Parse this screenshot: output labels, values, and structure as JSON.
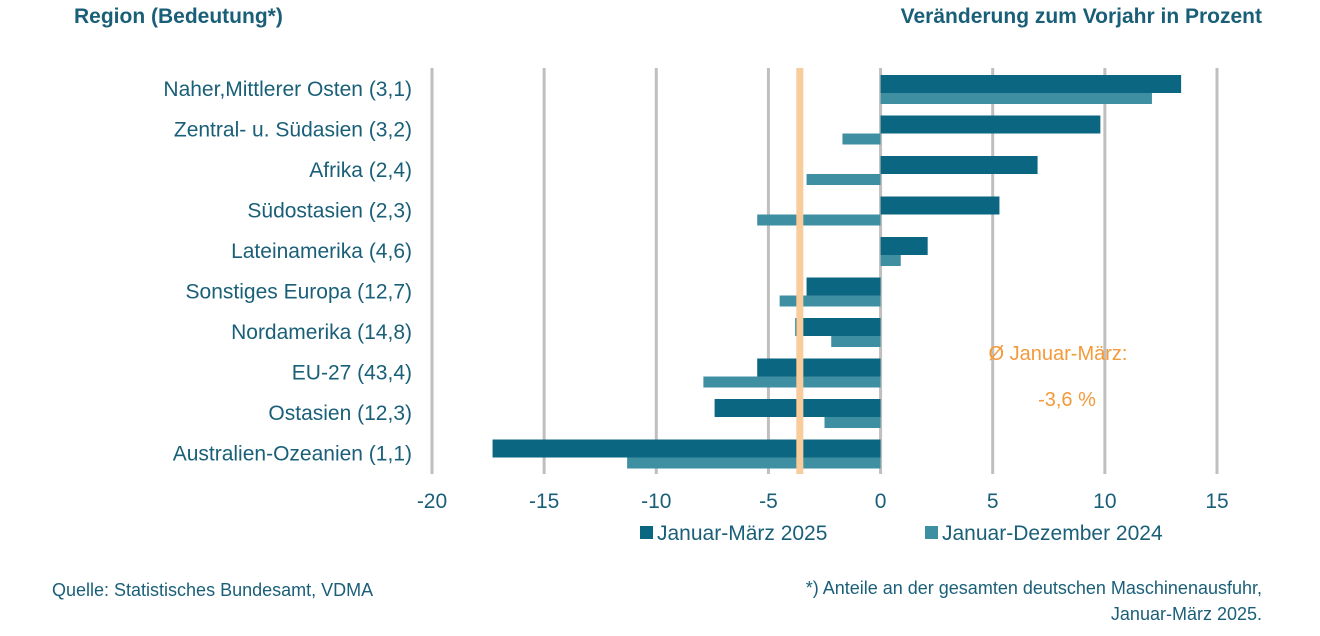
{
  "header": {
    "left": "Region (Bedeutung*)",
    "right": "Veränderung zum Vorjahr in Prozent"
  },
  "footer": {
    "source": "Quelle: Statistisches Bundesamt, VDMA",
    "note_line1": "*) Anteile an der gesamten deutschen Maschinenausfuhr,",
    "note_line2": "Januar-März 2025."
  },
  "colors": {
    "series1": "#0b6682",
    "series2": "#3f8fa3",
    "average": "#f8cc9b",
    "average_text": "#f39a3a",
    "grid": "#bfbfbf",
    "text": "#1a5f78"
  },
  "chart_data": {
    "type": "bar",
    "orientation": "horizontal",
    "categories": [
      "Naher,Mittlerer Osten (3,1)",
      "Zentral- u. Südasien (3,2)",
      "Afrika (2,4)",
      "Südostasien (2,3)",
      "Lateinamerika (4,6)",
      "Sonstiges Europa (12,7)",
      "Nordamerika (14,8)",
      "EU-27 (43,4)",
      "Ostasien (12,3)",
      "Australien-Ozeanien (1,1)"
    ],
    "series": [
      {
        "name": "Januar-März 2025",
        "values": [
          13.4,
          9.8,
          7.0,
          5.3,
          2.1,
          -3.3,
          -3.8,
          -5.5,
          -7.4,
          -17.3
        ]
      },
      {
        "name": "Januar-Dezember 2024",
        "values": [
          12.1,
          -1.7,
          -3.3,
          -5.5,
          0.9,
          -4.5,
          -2.2,
          -7.9,
          -2.5,
          -11.3
        ]
      }
    ],
    "xlim": [
      -20,
      15
    ],
    "xticks": [
      "-20",
      "-15",
      "-10",
      "-5",
      "0",
      "5",
      "10",
      "15"
    ],
    "grid": true,
    "legend": "bottom",
    "average_line": {
      "value": -3.6,
      "label_line1": "Ø Januar-März:",
      "label_line2": "-3,6 %"
    }
  }
}
